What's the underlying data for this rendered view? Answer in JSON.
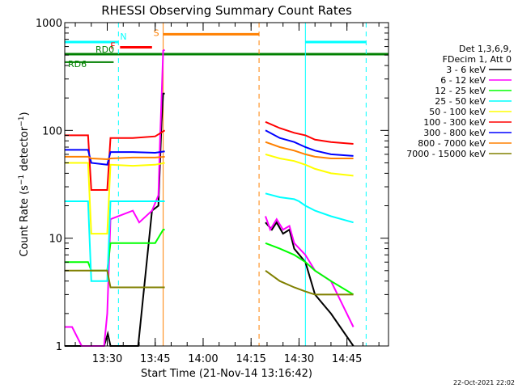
{
  "chart_data": {
    "type": "line",
    "title": "RHESSI Observing Summary Count Rates",
    "xlabel": "Start Time (21-Nov-14 13:16:42)",
    "ylabel": "Count Rate (s⁻¹ detector⁻¹)",
    "y_scale": "log",
    "xlim": [
      "13:16:42",
      "14:58:00"
    ],
    "ylim": [
      1,
      1000
    ],
    "x_ticks": [
      "13:30",
      "13:45",
      "14:00",
      "14:15",
      "14:30",
      "14:45"
    ],
    "y_ticks": [
      "1",
      "10",
      "100",
      "1000"
    ],
    "timestamp": "22-Oct-2021 22:02",
    "legend_header": [
      "Det 1,3,6,9,",
      "FDecim 1, Att 0"
    ],
    "series": [
      {
        "name": "3 - 6 keV",
        "color": "#000000",
        "points": [
          [
            "13:16:42",
            1
          ],
          [
            "13:29:00",
            1
          ],
          [
            "13:30:10",
            1.3
          ],
          [
            "13:31:00",
            1
          ],
          [
            "13:39:40",
            1
          ],
          [
            "13:44:00",
            18
          ],
          [
            "13:46:00",
            20
          ],
          [
            "13:46:30",
            50
          ],
          [
            "13:47:00",
            120
          ],
          [
            "13:47:30",
            220
          ],
          [
            "13:48:00",
            220
          ],
          [
            "14:19:30",
            14
          ],
          [
            "14:21:30",
            12
          ],
          [
            "14:23:00",
            14
          ],
          [
            "14:25:00",
            11
          ],
          [
            "14:27:00",
            12
          ],
          [
            "14:28:30",
            8
          ],
          [
            "14:32:00",
            6
          ],
          [
            "14:35:00",
            3
          ],
          [
            "14:40:00",
            2
          ],
          [
            "14:47:00",
            1
          ]
        ]
      },
      {
        "name": "6 - 12 keV",
        "color": "#ff00ff",
        "points": [
          [
            "13:16:42",
            1.5
          ],
          [
            "13:19:00",
            1.5
          ],
          [
            "13:22:00",
            1
          ],
          [
            "13:29:00",
            1
          ],
          [
            "13:30:00",
            2
          ],
          [
            "13:31:00",
            15
          ],
          [
            "13:38:00",
            18
          ],
          [
            "13:40:00",
            14
          ],
          [
            "13:44:00",
            18
          ],
          [
            "13:46:00",
            25
          ],
          [
            "13:46:30",
            80
          ],
          [
            "13:47:00",
            200
          ],
          [
            "13:47:30",
            550
          ],
          [
            "13:48:00",
            560
          ],
          [
            "14:19:30",
            16
          ],
          [
            "14:21:00",
            12
          ],
          [
            "14:23:00",
            15
          ],
          [
            "14:25:00",
            12
          ],
          [
            "14:27:00",
            13
          ],
          [
            "14:28:30",
            9
          ],
          [
            "14:32:00",
            7
          ],
          [
            "14:35:00",
            5
          ],
          [
            "14:40:00",
            4
          ],
          [
            "14:47:00",
            1.5
          ]
        ]
      },
      {
        "name": "12 - 25 keV",
        "color": "#00ff00",
        "points": [
          [
            "13:16:42",
            6
          ],
          [
            "13:24:00",
            6
          ],
          [
            "13:25:00",
            5
          ],
          [
            "13:30:00",
            5
          ],
          [
            "13:31:00",
            9
          ],
          [
            "13:38:00",
            9
          ],
          [
            "13:45:00",
            9
          ],
          [
            "13:47:30",
            12
          ],
          [
            "13:48:00",
            12
          ],
          [
            "14:19:30",
            9
          ],
          [
            "14:24:00",
            8
          ],
          [
            "14:28:30",
            7
          ],
          [
            "14:32:00",
            6
          ],
          [
            "14:35:00",
            5
          ],
          [
            "14:40:00",
            4
          ],
          [
            "14:47:00",
            3
          ]
        ]
      },
      {
        "name": "25 - 50 keV",
        "color": "#00ffff",
        "points": [
          [
            "13:16:42",
            22
          ],
          [
            "13:24:00",
            22
          ],
          [
            "13:25:00",
            4
          ],
          [
            "13:30:00",
            4
          ],
          [
            "13:31:00",
            22
          ],
          [
            "13:38:00",
            22
          ],
          [
            "13:45:00",
            22
          ],
          [
            "13:48:00",
            22
          ],
          [
            "14:19:30",
            26
          ],
          [
            "14:24:00",
            24
          ],
          [
            "14:28:30",
            23
          ],
          [
            "14:30:00",
            22
          ],
          [
            "14:32:00",
            20
          ],
          [
            "14:35:00",
            18
          ],
          [
            "14:40:00",
            16
          ],
          [
            "14:47:00",
            14
          ]
        ]
      },
      {
        "name": "50 - 100 keV",
        "color": "#ffff00",
        "points": [
          [
            "13:16:42",
            50
          ],
          [
            "13:24:00",
            50
          ],
          [
            "13:25:00",
            11
          ],
          [
            "13:30:00",
            11
          ],
          [
            "13:31:00",
            48
          ],
          [
            "13:38:00",
            47
          ],
          [
            "13:45:00",
            48
          ],
          [
            "13:48:00",
            50
          ],
          [
            "14:19:30",
            60
          ],
          [
            "14:24:00",
            55
          ],
          [
            "14:28:30",
            52
          ],
          [
            "14:32:00",
            48
          ],
          [
            "14:35:00",
            44
          ],
          [
            "14:40:00",
            40
          ],
          [
            "14:47:00",
            38
          ]
        ]
      },
      {
        "name": "100 - 300 keV",
        "color": "#ff0000",
        "points": [
          [
            "13:16:42",
            90
          ],
          [
            "13:24:00",
            90
          ],
          [
            "13:25:00",
            28
          ],
          [
            "13:30:00",
            28
          ],
          [
            "13:31:00",
            85
          ],
          [
            "13:38:00",
            85
          ],
          [
            "13:45:00",
            88
          ],
          [
            "13:48:00",
            100
          ],
          [
            "14:19:30",
            120
          ],
          [
            "14:24:00",
            105
          ],
          [
            "14:28:30",
            95
          ],
          [
            "14:32:00",
            90
          ],
          [
            "14:35:00",
            82
          ],
          [
            "14:40:00",
            78
          ],
          [
            "14:47:00",
            75
          ]
        ]
      },
      {
        "name": "300 - 800 keV",
        "color": "#0000ff",
        "points": [
          [
            "13:16:42",
            66
          ],
          [
            "13:24:00",
            66
          ],
          [
            "13:25:00",
            50
          ],
          [
            "13:30:00",
            48
          ],
          [
            "13:31:00",
            63
          ],
          [
            "13:38:00",
            63
          ],
          [
            "13:45:00",
            62
          ],
          [
            "13:48:00",
            64
          ],
          [
            "14:19:30",
            100
          ],
          [
            "14:24:00",
            85
          ],
          [
            "14:28:30",
            78
          ],
          [
            "14:32:00",
            70
          ],
          [
            "14:35:00",
            65
          ],
          [
            "14:40:00",
            60
          ],
          [
            "14:47:00",
            58
          ]
        ]
      },
      {
        "name": "800 - 7000 keV",
        "color": "#ff8000",
        "points": [
          [
            "13:16:42",
            57
          ],
          [
            "13:24:00",
            57
          ],
          [
            "13:25:00",
            55
          ],
          [
            "13:30:00",
            54
          ],
          [
            "13:31:00",
            55
          ],
          [
            "13:38:00",
            56
          ],
          [
            "13:45:00",
            56
          ],
          [
            "13:48:00",
            57
          ],
          [
            "14:19:30",
            78
          ],
          [
            "14:24:00",
            70
          ],
          [
            "14:28:30",
            65
          ],
          [
            "14:32:00",
            60
          ],
          [
            "14:35:00",
            57
          ],
          [
            "14:40:00",
            55
          ],
          [
            "14:47:00",
            55
          ]
        ]
      },
      {
        "name": "7000 - 15000 keV",
        "color": "#808000",
        "points": [
          [
            "13:16:42",
            5
          ],
          [
            "13:30:00",
            5
          ],
          [
            "13:31:00",
            3.5
          ],
          [
            "13:38:00",
            3.5
          ],
          [
            "13:45:00",
            3.5
          ],
          [
            "13:48:00",
            3.5
          ],
          [
            "14:19:30",
            5
          ],
          [
            "14:24:00",
            4
          ],
          [
            "14:28:30",
            3.5
          ],
          [
            "14:32:00",
            3.2
          ],
          [
            "14:35:00",
            3
          ],
          [
            "14:40:00",
            3
          ],
          [
            "14:47:00",
            3
          ]
        ]
      }
    ],
    "annotations": [
      {
        "label": "N",
        "color": "#00ffff",
        "start": "13:16:42",
        "end": "13:33:30",
        "level": 660
      },
      {
        "label": "N",
        "color": "#00ffff",
        "start": "14:32:00",
        "end": "14:51:00",
        "level": 660
      },
      {
        "label": "S",
        "color": "#ff8000",
        "start": "13:47:30",
        "end": "14:17:30",
        "level": 780
      },
      {
        "label": "F",
        "color": "#ff0000",
        "start": "13:34:00",
        "end": "13:44:00",
        "level": 590
      },
      {
        "label": "RD0",
        "color": "#008000",
        "start": "13:16:42",
        "end": "14:58:00",
        "level": 510
      },
      {
        "label": "RD6",
        "color": "#008000",
        "start": "13:16:42",
        "end": "13:32:00",
        "level": 430
      }
    ],
    "markers": [
      {
        "time": "13:33:30",
        "color": "#00ffff",
        "style": "dashed"
      },
      {
        "time": "13:47:30",
        "color": "#ff8000",
        "style": "solid"
      },
      {
        "time": "14:17:30",
        "color": "#ff8000",
        "style": "dashed"
      },
      {
        "time": "14:32:00",
        "color": "#00ffff",
        "style": "solid"
      },
      {
        "time": "14:51:00",
        "color": "#00ffff",
        "style": "dashed"
      }
    ],
    "gap": {
      "start": "13:48:00",
      "end": "14:19:30"
    },
    "grid": false,
    "legend_position": "right"
  }
}
